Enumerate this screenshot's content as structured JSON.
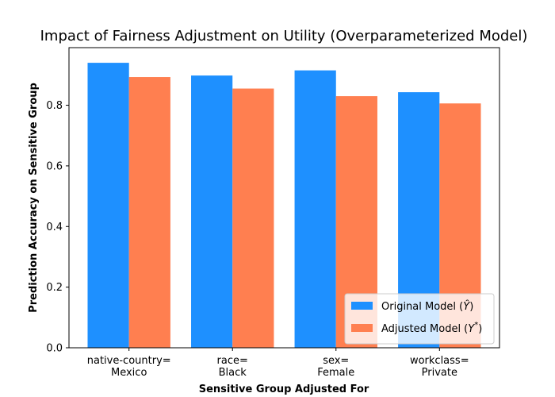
{
  "chart_data": {
    "type": "bar",
    "title": "Impact of Fairness Adjustment on Utility (Overparameterized Model)",
    "xlabel": "Sensitive Group Adjusted For",
    "ylabel": "Prediction Accuracy on Sensitive Group",
    "categories": [
      [
        "native-country=",
        "Mexico"
      ],
      [
        "race=",
        "Black"
      ],
      [
        "sex=",
        "Female"
      ],
      [
        "workclass=",
        "Private"
      ]
    ],
    "series": [
      {
        "name": "Original Model",
        "symbol": "Ŷ",
        "color": "#1e90ff",
        "values": [
          0.94,
          0.898,
          0.915,
          0.843
        ]
      },
      {
        "name": "Adjusted Model",
        "symbol": "Y*",
        "color": "#ff7f50",
        "values": [
          0.893,
          0.855,
          0.83,
          0.806
        ]
      }
    ],
    "ylim": [
      0,
      0.99
    ],
    "yticks": [
      "0.0",
      "0.2",
      "0.4",
      "0.6",
      "0.8"
    ],
    "legend_position": "lower-right",
    "grid": false
  }
}
